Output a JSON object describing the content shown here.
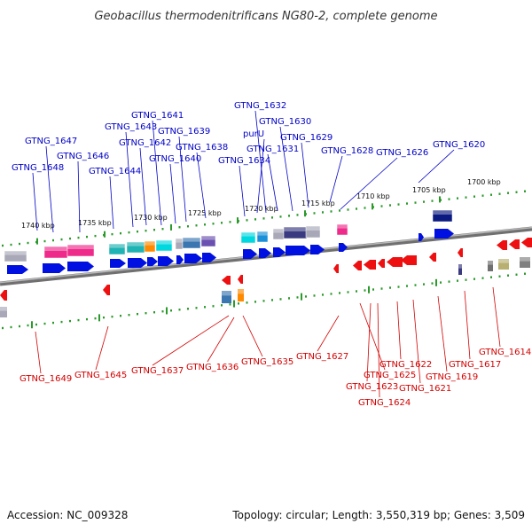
{
  "title": "Geobacillus thermodenitrificans NG80-2, complete genome",
  "footer": {
    "accession": "Accession: NC_009328",
    "topology": "Topology: circular; Length: 3,550,319 bp; Genes: 3,509"
  },
  "colors": {
    "forward_label": "#0000c8",
    "reverse_label": "#d40000",
    "forward_arrow": "#0010e0",
    "reverse_arrow": "#ee1010",
    "tick": "#2a9a2a",
    "backbone": "#808080"
  },
  "scale_labels": [
    "1740 kbp",
    "1735 kbp",
    "1730 kbp",
    "1725 kbp",
    "1720 kbp",
    "1715 kbp",
    "1710 kbp",
    "1705 kbp",
    "1700 kbp"
  ],
  "forward_genes": [
    "GTNG_1648",
    "GTNG_1647",
    "GTNG_1646",
    "GTNG_1644",
    "GTNG_1643",
    "GTNG_1642",
    "GTNG_1641",
    "GTNG_1640",
    "GTNG_1639",
    "GTNG_1638",
    "GTNG_1634",
    "GTNG_1632",
    "purU",
    "GTNG_1631",
    "GTNG_1630",
    "GTNG_1629",
    "GTNG_1628",
    "GTNG_1626",
    "GTNG_1620"
  ],
  "reverse_genes": [
    "GTNG_1649",
    "GTNG_1645",
    "GTNG_1637",
    "GTNG_1636",
    "GTNG_1635",
    "GTNG_1627",
    "GTNG_1625",
    "GTNG_1623",
    "GTNG_1624",
    "GTNG_1622",
    "GTNG_1621",
    "GTNG_1619",
    "GTNG_1617",
    "GTNG_1614"
  ]
}
